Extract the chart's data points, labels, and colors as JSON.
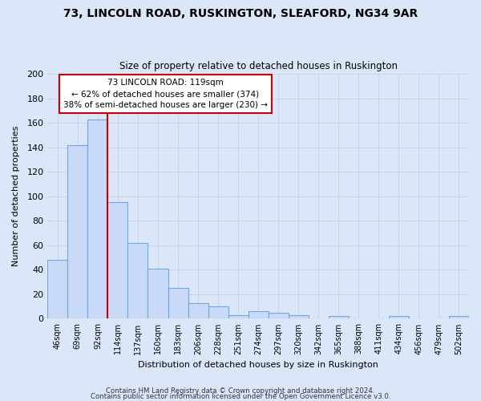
{
  "title1": "73, LINCOLN ROAD, RUSKINGTON, SLEAFORD, NG34 9AR",
  "title2": "Size of property relative to detached houses in Ruskington",
  "xlabel": "Distribution of detached houses by size in Ruskington",
  "ylabel": "Number of detached properties",
  "bar_labels": [
    "46sqm",
    "69sqm",
    "92sqm",
    "114sqm",
    "137sqm",
    "160sqm",
    "183sqm",
    "206sqm",
    "228sqm",
    "251sqm",
    "274sqm",
    "297sqm",
    "320sqm",
    "342sqm",
    "365sqm",
    "388sqm",
    "411sqm",
    "434sqm",
    "456sqm",
    "479sqm",
    "502sqm"
  ],
  "bar_values": [
    48,
    142,
    163,
    95,
    62,
    41,
    25,
    13,
    10,
    3,
    6,
    5,
    3,
    0,
    2,
    0,
    0,
    2,
    0,
    0,
    2
  ],
  "bar_color": "#c9daf8",
  "bar_edge_color": "#6fa8dc",
  "annotation_box_text": "73 LINCOLN ROAD: 119sqm\n← 62% of detached houses are smaller (374)\n38% of semi-detached houses are larger (230) →",
  "annotation_box_edge_color": "#cc0000",
  "red_line_x": 2.5,
  "ylim": [
    0,
    200
  ],
  "yticks": [
    0,
    20,
    40,
    60,
    80,
    100,
    120,
    140,
    160,
    180,
    200
  ],
  "footer1": "Contains HM Land Registry data © Crown copyright and database right 2024.",
  "footer2": "Contains public sector information licensed under the Open Government Licence v3.0.",
  "bg_color": "#dce6f9",
  "grid_color": "#c8d5ee"
}
